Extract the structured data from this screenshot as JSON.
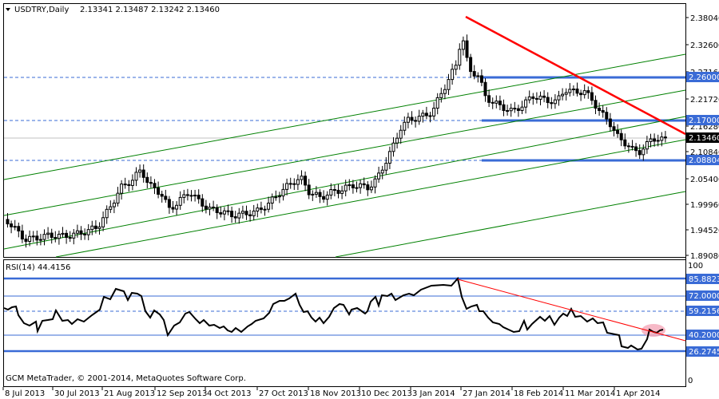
{
  "header": {
    "symbol_label": "USDTRY,Daily",
    "ohlc": "2.13341 2.13487 2.13242 2.13460",
    "collapse_icon": "triangle-down-icon"
  },
  "rsi_header": {
    "label": "RSI(14) 44.4156"
  },
  "footer": {
    "copyright": "GCM MetaTrader, © 2001-2014, MetaQuotes Software Corp."
  },
  "colors": {
    "candle": "#000000",
    "channel": "#008000",
    "level_line": "#3a6bd6",
    "level_dashed": "#3a6bd6",
    "trendline": "#ff0000",
    "current_price_line": "#c0c0c0",
    "rsi_line": "#000000",
    "highlight": "#f4a7b9"
  },
  "chart_data": [
    {
      "type": "candlestick",
      "title": "USDTRY,Daily",
      "ohlc_last": {
        "open": 2.13341,
        "high": 2.13487,
        "low": 2.13242,
        "close": 2.1346
      },
      "x_tick_labels": [
        "8 Jul 2013",
        "30 Jul 2013",
        "21 Aug 2013",
        "12 Sep 2013",
        "4 Oct 2013",
        "27 Oct 2013",
        "18 Nov 2013",
        "10 Dec 2013",
        "3 Jan 2014",
        "27 Jan 2014",
        "18 Feb 2014",
        "11 Mar 2014",
        "1 Apr 2014"
      ],
      "y_tick_labels": [
        "2.38040",
        "2.32600",
        "2.27160",
        "2.21720",
        "2.16280",
        "2.10840",
        "2.05400",
        "1.99960",
        "1.94520",
        "1.89080"
      ],
      "ylim": [
        1.8908,
        2.39
      ],
      "horizontal_levels": [
        {
          "value": 2.26,
          "label": "2.26000",
          "style": "solid-thick"
        },
        {
          "value": 2.17,
          "label": "2.17000",
          "style": "solid-thick"
        },
        {
          "value": 2.08804,
          "label": "2.08804",
          "style": "solid-thick"
        }
      ],
      "current_price": {
        "value": 2.1346,
        "label": "2.13460"
      },
      "trendline": {
        "from": [
          "27 Jan 2014",
          2.384
        ],
        "to": [
          "end",
          2.145
        ],
        "color": "red"
      },
      "channel_lines": 5,
      "approx_closes": [
        {
          "date": "8 Jul 2013",
          "close": 1.97
        },
        {
          "date": "30 Jul 2013",
          "close": 1.93
        },
        {
          "date": "21 Aug 2013",
          "close": 2.05
        },
        {
          "date": "12 Sep 2013",
          "close": 1.96
        },
        {
          "date": "4 Oct 2013",
          "close": 2.0
        },
        {
          "date": "27 Oct 2013",
          "close": 1.98
        },
        {
          "date": "18 Nov 2013",
          "close": 2.02
        },
        {
          "date": "10 Dec 2013",
          "close": 2.04
        },
        {
          "date": "3 Jan 2014",
          "close": 2.17
        },
        {
          "date": "27 Jan 2014",
          "close": 2.34
        },
        {
          "date": "18 Feb 2014",
          "close": 2.2
        },
        {
          "date": "11 Mar 2014",
          "close": 2.22
        },
        {
          "date": "1 Apr 2014",
          "close": 2.1
        },
        {
          "date": "last",
          "close": 2.1346
        }
      ]
    },
    {
      "type": "line",
      "title": "RSI(14) 44.4156",
      "current_value": 44.4156,
      "ylim": [
        0,
        100
      ],
      "y_tick_labels": [
        "100",
        "0"
      ],
      "levels": [
        {
          "value": 85.88235,
          "label": "85.88235",
          "style": "solid-thick"
        },
        {
          "value": 72.0,
          "label": "72.00000",
          "style": "solid"
        },
        {
          "value": 59.21569,
          "label": "59.21569",
          "style": "dashed"
        },
        {
          "value": 40.2,
          "label": "40.20000",
          "style": "solid"
        },
        {
          "value": 26.27451,
          "label": "26.27451",
          "style": "solid-thick"
        }
      ],
      "approx_values": [
        {
          "date": "8 Jul 2013",
          "value": 57
        },
        {
          "date": "30 Jul 2013",
          "value": 44
        },
        {
          "date": "21 Aug 2013",
          "value": 72
        },
        {
          "date": "12 Sep 2013",
          "value": 38
        },
        {
          "date": "4 Oct 2013",
          "value": 50
        },
        {
          "date": "27 Oct 2013",
          "value": 43
        },
        {
          "date": "18 Nov 2013",
          "value": 48
        },
        {
          "date": "10 Dec 2013",
          "value": 63
        },
        {
          "date": "3 Jan 2014",
          "value": 70
        },
        {
          "date": "27 Jan 2014",
          "value": 86
        },
        {
          "date": "18 Feb 2014",
          "value": 48
        },
        {
          "date": "11 Mar 2014",
          "value": 55
        },
        {
          "date": "1 Apr 2014",
          "value": 28
        },
        {
          "date": "last",
          "value": 44.4
        }
      ],
      "trendline": {
        "from": [
          "27 Jan 2014",
          86
        ],
        "to": [
          "end",
          38
        ],
        "color": "red"
      }
    }
  ]
}
